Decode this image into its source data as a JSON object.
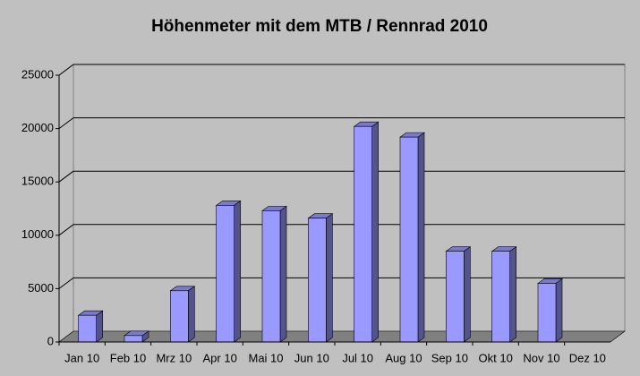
{
  "chart_data": {
    "type": "bar3d",
    "title": "Höhenmeter mit dem MTB / Rennrad 2010",
    "categories": [
      "Jan 10",
      "Feb 10",
      "Mrz 10",
      "Apr 10",
      "Mai 10",
      "Jun 10",
      "Jul 10",
      "Aug 10",
      "Sep 10",
      "Okt 10",
      "Nov 10",
      "Dez 10"
    ],
    "values": [
      2500,
      600,
      4800,
      12800,
      12300,
      11600,
      20200,
      19200,
      8500,
      8500,
      5500,
      null
    ],
    "color": "#9999ff",
    "ylim": [
      0,
      25000
    ],
    "yticks": [
      0,
      5000,
      10000,
      15000,
      20000,
      25000
    ],
    "grid": true
  }
}
